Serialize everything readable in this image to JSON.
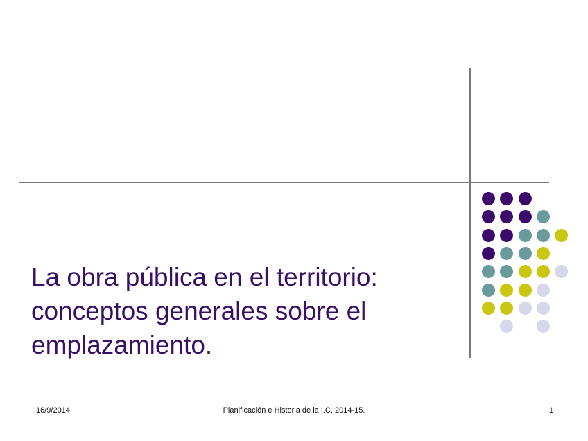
{
  "slide": {
    "title_lines": [
      "La obra pública en el territorio:",
      "conceptos generales sobre el",
      "emplazamiento."
    ],
    "footer": {
      "date": "16/9/2014",
      "center": "Planificación e Historia de la I.C.  2014-15.",
      "page_number": "1"
    }
  },
  "colors": {
    "title": "#3a0f68",
    "purple": "#3b0a6b",
    "teal": "#6a9a9c",
    "yellow": "#c9c711",
    "lavender": "#d6d7ea",
    "rule": "#7a7a7a"
  },
  "decoration": {
    "dot_grid": [
      [
        "purple",
        "purple",
        "purple",
        "",
        ""
      ],
      [
        "purple",
        "purple",
        "purple",
        "teal",
        ""
      ],
      [
        "purple",
        "purple",
        "teal",
        "teal",
        "yellow"
      ],
      [
        "purple",
        "teal",
        "teal",
        "yellow",
        ""
      ],
      [
        "teal",
        "teal",
        "yellow",
        "yellow",
        "lavender"
      ],
      [
        "teal",
        "yellow",
        "yellow",
        "lavender",
        ""
      ],
      [
        "yellow",
        "yellow",
        "lavender",
        "lavender",
        ""
      ],
      [
        "",
        "lavender",
        "",
        "lavender",
        ""
      ]
    ]
  }
}
